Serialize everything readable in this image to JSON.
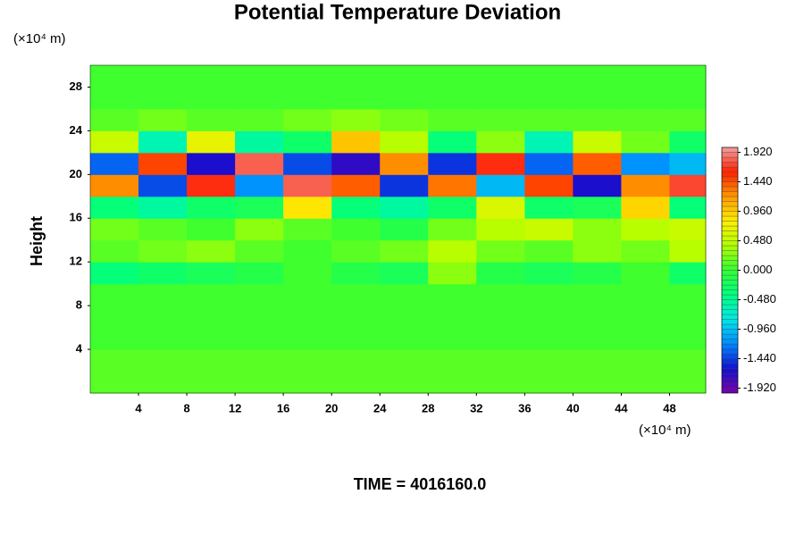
{
  "chart_data": {
    "type": "heatmap",
    "title": "Potential Temperature Deviation",
    "ylabel": "Height",
    "x_unit": "(×10⁴ m)",
    "y_unit": "(×10⁴ m)",
    "annotation": "TIME = 4016160.0",
    "x": [
      2,
      6,
      10,
      14,
      18,
      22,
      26,
      30,
      34,
      38,
      42,
      46,
      50
    ],
    "y": [
      1,
      3,
      5,
      7,
      9,
      11,
      13,
      15,
      17,
      19,
      21,
      23,
      25,
      27,
      29
    ],
    "z": [
      [
        0.08,
        0.08,
        0.08,
        0.08,
        0.08,
        0.08,
        0.08,
        0.08,
        0.08,
        0.08,
        0.08,
        0.08,
        0.08
      ],
      [
        0.08,
        0.08,
        0.08,
        0.08,
        0.08,
        0.08,
        0.08,
        0.08,
        0.08,
        0.08,
        0.08,
        0.08,
        0.08
      ],
      [
        0.06,
        0.06,
        0.06,
        0.06,
        0.06,
        0.06,
        0.06,
        0.06,
        0.06,
        0.06,
        0.06,
        0.06,
        0.06
      ],
      [
        0.05,
        0.05,
        0.05,
        0.05,
        0.05,
        0.05,
        0.05,
        0.05,
        0.05,
        0.05,
        0.05,
        0.05,
        0.05
      ],
      [
        0.05,
        0.05,
        0.05,
        0.05,
        0.05,
        0.05,
        0.05,
        0.05,
        0.05,
        0.05,
        0.05,
        0.05,
        0.05
      ],
      [
        -0.4,
        -0.3,
        -0.2,
        -0.1,
        0.0,
        -0.1,
        -0.2,
        0.3,
        -0.1,
        -0.2,
        -0.1,
        0.0,
        -0.3
      ],
      [
        0.1,
        0.2,
        0.3,
        0.1,
        0.0,
        0.1,
        0.2,
        0.4,
        0.2,
        0.1,
        0.3,
        0.2,
        0.4
      ],
      [
        0.2,
        0.1,
        0.0,
        0.3,
        0.1,
        0.0,
        -0.1,
        0.2,
        0.4,
        0.5,
        0.3,
        0.4,
        0.5
      ],
      [
        -0.4,
        -0.5,
        -0.3,
        -0.2,
        0.8,
        -0.4,
        -0.5,
        -0.3,
        0.6,
        -0.3,
        -0.2,
        0.9,
        -0.4
      ],
      [
        1.2,
        -1.4,
        1.6,
        -1.2,
        1.8,
        1.4,
        -1.5,
        1.3,
        -1.0,
        1.5,
        -1.6,
        1.2,
        1.7
      ],
      [
        -1.3,
        1.5,
        -1.6,
        1.8,
        -1.4,
        -1.7,
        1.2,
        -1.5,
        1.6,
        -1.3,
        1.4,
        -1.2,
        -1.0
      ],
      [
        0.5,
        -0.6,
        0.7,
        -0.5,
        -0.3,
        1.0,
        0.4,
        -0.4,
        0.3,
        -0.6,
        0.5,
        0.2,
        -0.3
      ],
      [
        0.1,
        0.2,
        0.1,
        0.15,
        0.2,
        0.3,
        0.2,
        0.1,
        0.1,
        0.15,
        0.1,
        0.1,
        0.1
      ],
      [
        0.05,
        0.05,
        0.05,
        0.05,
        0.05,
        0.05,
        0.05,
        0.05,
        0.05,
        0.05,
        0.05,
        0.05,
        0.05
      ],
      [
        0.05,
        0.05,
        0.05,
        0.05,
        0.05,
        0.05,
        0.05,
        0.05,
        0.05,
        0.05,
        0.05,
        0.05,
        0.05
      ]
    ],
    "xlim": [
      0,
      51
    ],
    "ylim": [
      0,
      30
    ],
    "xticks": [
      4,
      8,
      12,
      16,
      20,
      24,
      28,
      32,
      36,
      40,
      44,
      48
    ],
    "yticks": [
      4,
      8,
      12,
      16,
      20,
      24,
      28
    ],
    "clim": [
      -2,
      2
    ],
    "cticks": [
      {
        "value": -1.92,
        "label": "-1.920"
      },
      {
        "value": -1.44,
        "label": "-1.440"
      },
      {
        "value": -0.96,
        "label": "-0.960"
      },
      {
        "value": -0.48,
        "label": "-0.480"
      },
      {
        "value": 0,
        "label": "0.000"
      },
      {
        "value": 0.48,
        "label": "0.480"
      },
      {
        "value": 0.96,
        "label": "0.960"
      },
      {
        "value": 1.44,
        "label": "1.440"
      },
      {
        "value": 1.92,
        "label": "1.920"
      }
    ],
    "colorscale": [
      "#7a00a8",
      "#1010d0",
      "#0088ff",
      "#00e8e8",
      "#00ff80",
      "#33ff33",
      "#b0ff00",
      "#ffee00",
      "#ff9900",
      "#ff2000",
      "#f0a0a0"
    ]
  }
}
